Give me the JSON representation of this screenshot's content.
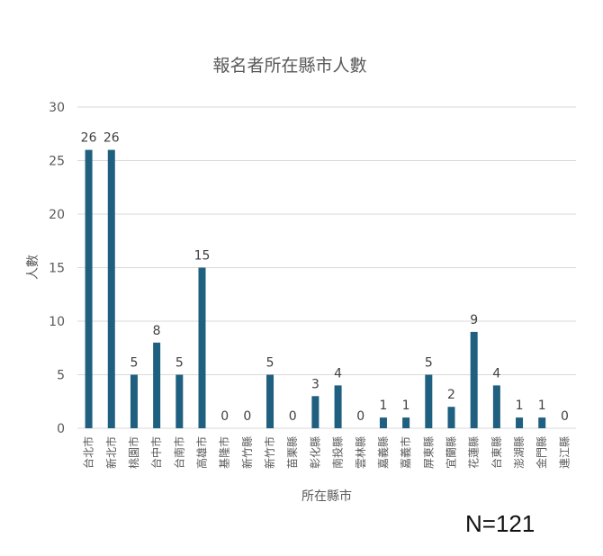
{
  "chart_data": {
    "type": "bar",
    "title": "報名者所在縣市人數",
    "xlabel": "所在縣市",
    "ylabel": "人數",
    "ylim": [
      0,
      30
    ],
    "yticks": [
      0,
      5,
      10,
      15,
      20,
      25,
      30
    ],
    "grid": true,
    "data_labels": true,
    "categories": [
      "台北市",
      "新北市",
      "桃園市",
      "台中市",
      "台南市",
      "高雄市",
      "基隆市",
      "新竹縣",
      "新竹市",
      "苗栗縣",
      "彰化縣",
      "南投縣",
      "雲林縣",
      "嘉義縣",
      "嘉義市",
      "屏東縣",
      "宜蘭縣",
      "花蓮縣",
      "台東縣",
      "澎湖縣",
      "金門縣",
      "連江縣"
    ],
    "values": [
      26,
      26,
      5,
      8,
      5,
      15,
      0,
      0,
      5,
      0,
      3,
      4,
      0,
      1,
      1,
      5,
      2,
      9,
      4,
      1,
      1,
      0
    ],
    "bar_color": "#1f5f7f"
  },
  "note": "N=121",
  "colors": {
    "bar": "#1f5f7f",
    "grid": "#d9d9d9",
    "text": "#595959"
  }
}
